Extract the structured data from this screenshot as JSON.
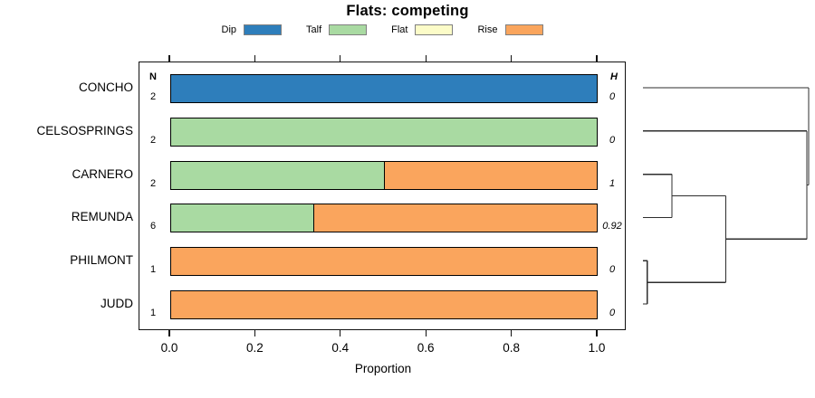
{
  "chart_data": {
    "type": "bar",
    "variant": "horizontal_stacked_proportion_with_dendrogram",
    "title": "Flats: competing",
    "xlabel": "Proportion",
    "xlim": [
      0,
      1
    ],
    "xticks": [
      {
        "value": 0.0,
        "label": "0.0"
      },
      {
        "value": 0.2,
        "label": "0.2"
      },
      {
        "value": 0.4,
        "label": "0.4"
      },
      {
        "value": 0.6,
        "label": "0.6"
      },
      {
        "value": 0.8,
        "label": "0.8"
      },
      {
        "value": 1.0,
        "label": "1.0"
      }
    ],
    "grid": false,
    "legend_position": "top",
    "legend": [
      {
        "label": "Dip",
        "color": "#2E7EBB"
      },
      {
        "label": "Talf",
        "color": "#A9DAA2"
      },
      {
        "label": "Flat",
        "color": "#FCFCC8"
      },
      {
        "label": "Rise",
        "color": "#FAA55D"
      }
    ],
    "n_header": "N",
    "h_header": "H",
    "rows": [
      {
        "label": "CONCHO",
        "n": "2",
        "h": "0",
        "segments": [
          {
            "category": "Dip",
            "value": 1
          }
        ]
      },
      {
        "label": "CELSOSPRINGS",
        "n": "2",
        "h": "0",
        "segments": [
          {
            "category": "Talf",
            "value": 1
          }
        ]
      },
      {
        "label": "CARNERO",
        "n": "2",
        "h": "1",
        "segments": [
          {
            "category": "Talf",
            "value": 0.5
          },
          {
            "category": "Rise",
            "value": 0.5
          }
        ]
      },
      {
        "label": "REMUNDA",
        "n": "6",
        "h": "0.92",
        "segments": [
          {
            "category": "Talf",
            "value": 0.333
          },
          {
            "category": "Rise",
            "value": 0.667
          }
        ]
      },
      {
        "label": "PHILMONT",
        "n": "1",
        "h": "0",
        "segments": [
          {
            "category": "Rise",
            "value": 1
          }
        ]
      },
      {
        "label": "JUDD",
        "n": "1",
        "h": "0",
        "segments": [
          {
            "category": "Rise",
            "value": 1
          }
        ]
      }
    ],
    "dendrogram": {
      "orientation": "right",
      "leaf_order": [
        "CONCHO",
        "CELSOSPRINGS",
        "CARNERO",
        "REMUNDA",
        "PHILMONT",
        "JUDD"
      ],
      "merges": [
        {
          "a": "L4",
          "b": "L5",
          "height": 0.026
        },
        {
          "a": "L2",
          "b": "L3",
          "height": 0.175
        },
        {
          "a": "M1",
          "b": "M0",
          "height": 0.5
        },
        {
          "a": "L1",
          "b": "M2",
          "height": 0.989
        },
        {
          "a": "L0",
          "b": "M3",
          "height": 1.0
        }
      ],
      "line_color": "#2e2e2e"
    }
  }
}
